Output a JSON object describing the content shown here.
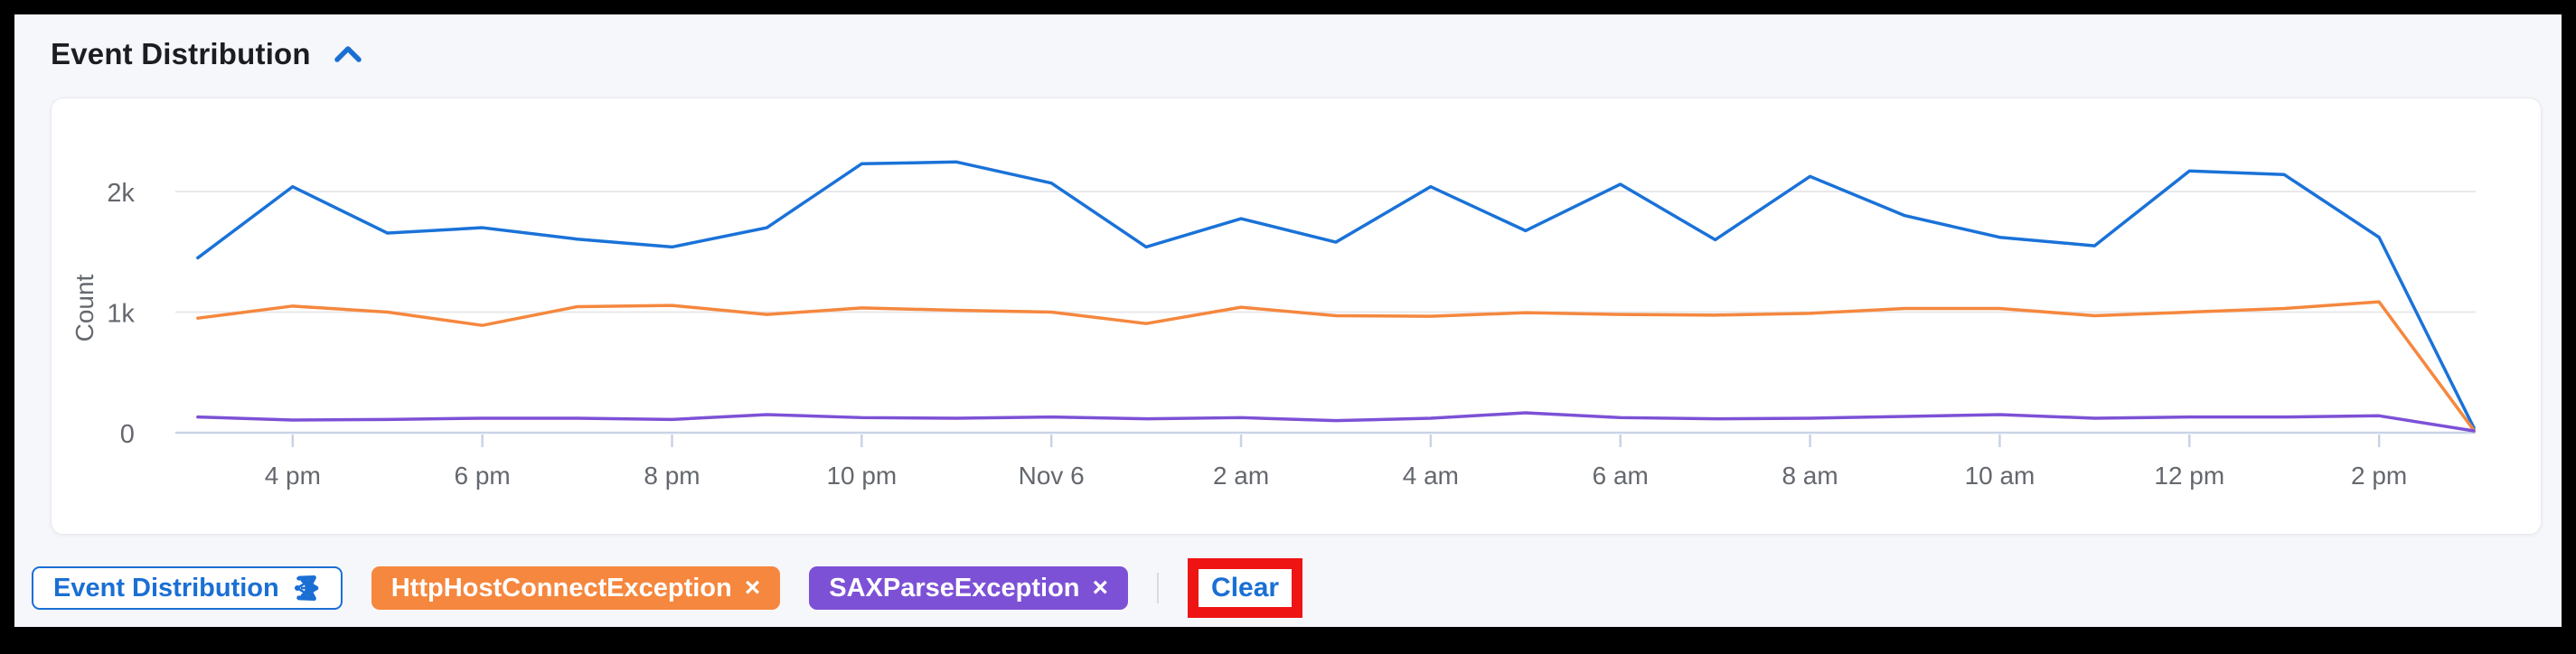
{
  "title": {
    "label": "Event Distribution"
  },
  "colors": {
    "accent_blue": "#1a6fd4",
    "annotation_red": "#ee1414",
    "chip_orange": "#f5873e",
    "chip_purple": "#7d51d6",
    "title_text": "#1b1d21",
    "axis_text": "#64686e"
  },
  "legend": {
    "chips": [
      {
        "label": "Event Distribution",
        "icon": "share",
        "color": "#1a6fd4",
        "style": "outline"
      },
      {
        "label": "HttpHostConnectException",
        "remove": true,
        "color": "#f5873e"
      },
      {
        "label": "SAXParseException",
        "remove": true,
        "color": "#7d51d6"
      }
    ],
    "remove_glyph": "×",
    "clear_label": "Clear"
  },
  "chart_data": {
    "type": "line",
    "title": "Event Distribution",
    "xlabel": "",
    "ylabel": "Count",
    "x": [
      "3 pm",
      "4 pm",
      "5 pm",
      "6 pm",
      "7 pm",
      "8 pm",
      "9 pm",
      "10 pm",
      "11 pm",
      "Nov 6",
      "1 am",
      "2 am",
      "3 am",
      "4 am",
      "5 am",
      "6 am",
      "7 am",
      "8 am",
      "9 am",
      "10 am",
      "11 am",
      "12 pm",
      "1 pm",
      "2 pm",
      "3 pm"
    ],
    "x_tick_labels": [
      "4 pm",
      "6 pm",
      "8 pm",
      "10 pm",
      "Nov 6",
      "2 am",
      "4 am",
      "6 am",
      "8 am",
      "10 am",
      "12 pm",
      "2 pm"
    ],
    "x_tick_indices": [
      1,
      3,
      5,
      7,
      9,
      11,
      13,
      15,
      17,
      19,
      21,
      23
    ],
    "y_ticks": [
      {
        "label": "0",
        "value": 0
      },
      {
        "label": "1k",
        "value": 1000
      },
      {
        "label": "2k",
        "value": 2000
      }
    ],
    "ylim": [
      0,
      2800
    ],
    "grid": true,
    "legend_position": "none",
    "series": [
      {
        "name": "Event Distribution",
        "color": "#1a72d8",
        "values": [
          1450,
          2040,
          1655,
          1700,
          1605,
          1540,
          1700,
          2230,
          2245,
          2070,
          1540,
          1775,
          1580,
          2040,
          1675,
          2060,
          1600,
          2125,
          1800,
          1620,
          1550,
          2170,
          2140,
          1620,
          40
        ]
      },
      {
        "name": "HttpHostConnectException",
        "color": "#f5873e",
        "values": [
          950,
          1050,
          1000,
          890,
          1045,
          1055,
          980,
          1035,
          1015,
          1000,
          905,
          1040,
          970,
          965,
          995,
          980,
          975,
          990,
          1030,
          1030,
          970,
          1000,
          1030,
          1085,
          20
        ]
      },
      {
        "name": "SAXParseException",
        "color": "#7d51d6",
        "values": [
          130,
          105,
          110,
          120,
          120,
          110,
          150,
          125,
          120,
          130,
          115,
          125,
          100,
          120,
          165,
          125,
          115,
          120,
          135,
          150,
          120,
          130,
          130,
          140,
          15
        ]
      }
    ]
  }
}
